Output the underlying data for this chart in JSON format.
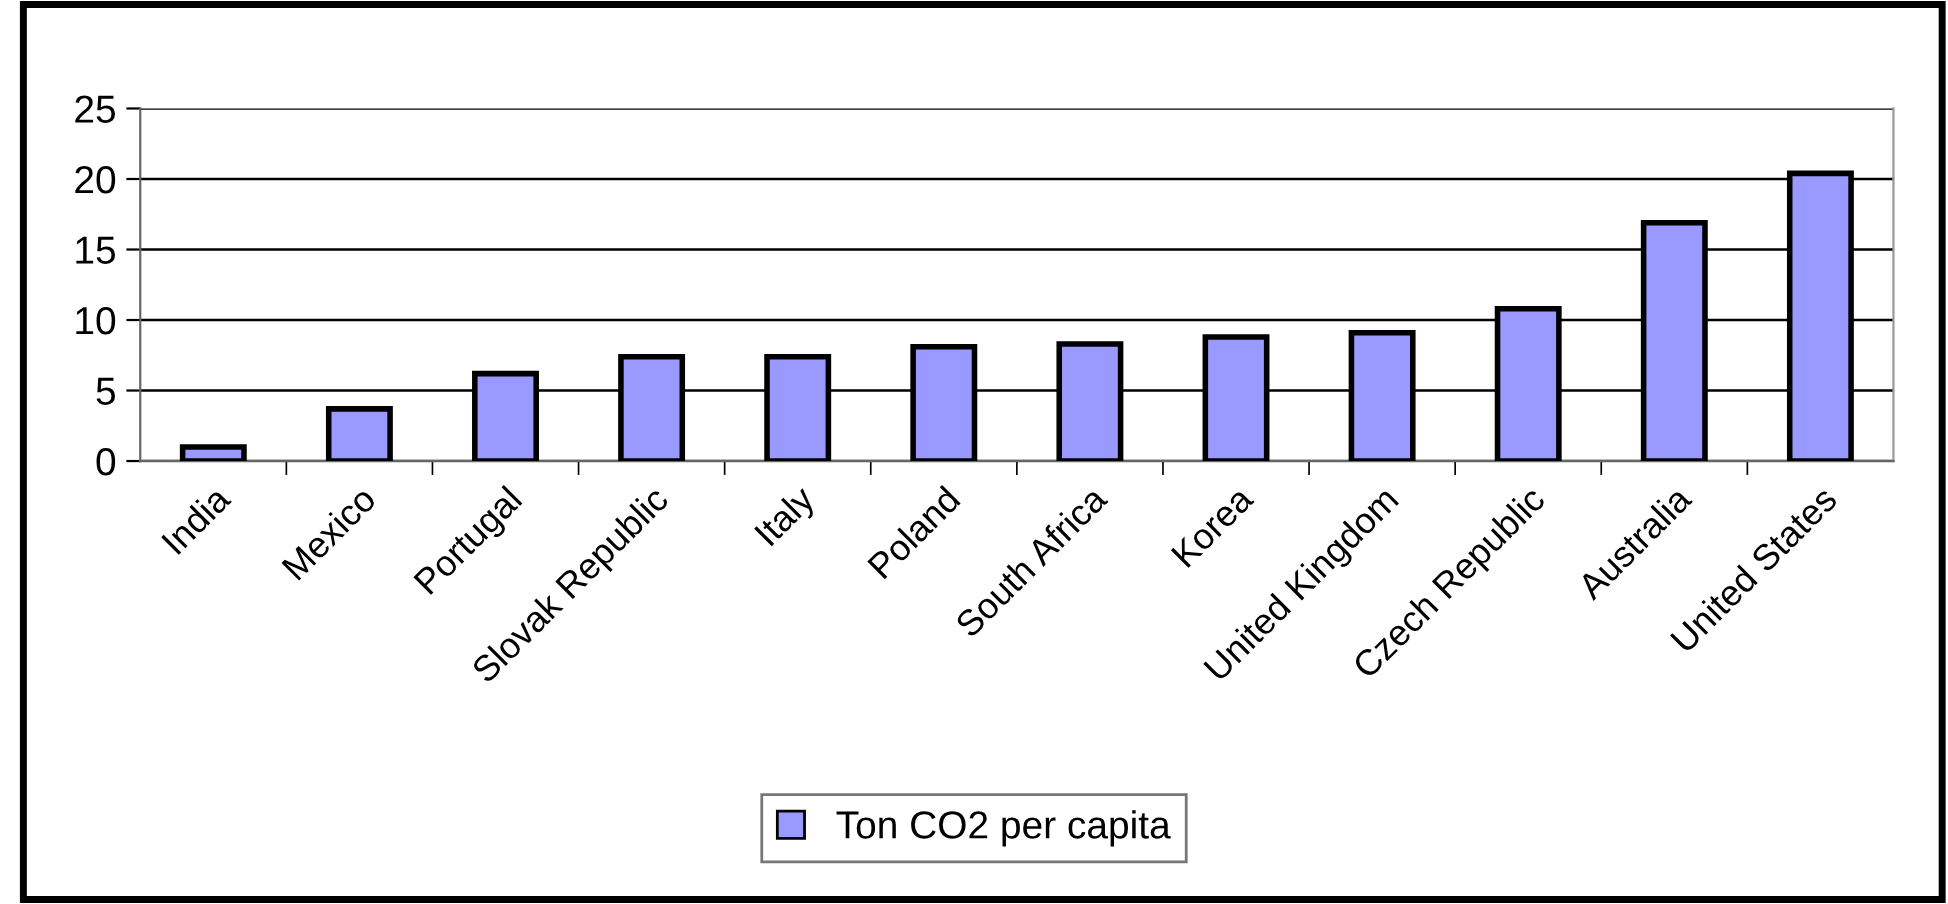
{
  "chart_data": {
    "type": "bar",
    "categories": [
      "India",
      "Mexico",
      "Portugal",
      "Slovak Republic",
      "Italy",
      "Poland",
      "South Africa",
      "Korea",
      "United Kingdom",
      "Czech Republic",
      "Australia",
      "United States"
    ],
    "series": [
      {
        "name": "Ton CO2 per capita",
        "color": "#9999ff",
        "values": [
          1.0,
          3.7,
          6.2,
          7.4,
          7.4,
          8.1,
          8.3,
          8.8,
          9.1,
          10.8,
          16.9,
          20.4
        ]
      }
    ],
    "ylim": [
      0,
      25
    ],
    "yticks": [
      0,
      5,
      10,
      15,
      20,
      25
    ],
    "grid": "y",
    "legend": "bottom"
  }
}
